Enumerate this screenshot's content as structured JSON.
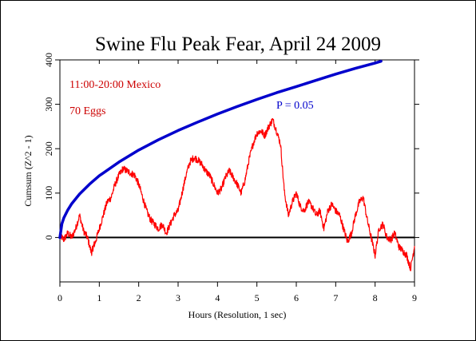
{
  "chart_data": {
    "type": "line",
    "title": "Swine Flu Peak Fear, April 24 2009",
    "xlabel": "Hours (Resolution, 1 sec)",
    "ylabel": "Cumsum (Z^2 - 1)",
    "xlim": [
      0,
      9
    ],
    "ylim": [
      -100,
      400
    ],
    "x_ticks": [
      0,
      1,
      2,
      3,
      4,
      5,
      6,
      7,
      8,
      9
    ],
    "y_ticks": [
      0,
      100,
      200,
      300,
      400
    ],
    "annotations": {
      "time_window": "11:00-20:00 Mexico",
      "eggs": "70 Eggs",
      "p_label": "P = 0.05"
    },
    "series": [
      {
        "role": "cumsum",
        "color": "#ff0000",
        "x": [
          0,
          0.1,
          0.2,
          0.3,
          0.4,
          0.5,
          0.6,
          0.7,
          0.8,
          0.85,
          0.9,
          1.0,
          1.1,
          1.2,
          1.3,
          1.4,
          1.5,
          1.6,
          1.7,
          1.8,
          1.9,
          2.0,
          2.1,
          2.2,
          2.3,
          2.4,
          2.5,
          2.6,
          2.7,
          2.8,
          2.9,
          3.0,
          3.1,
          3.2,
          3.3,
          3.4,
          3.5,
          3.6,
          3.7,
          3.8,
          3.9,
          4.0,
          4.1,
          4.2,
          4.3,
          4.4,
          4.5,
          4.6,
          4.7,
          4.8,
          4.9,
          5.0,
          5.1,
          5.2,
          5.3,
          5.4,
          5.5,
          5.6,
          5.7,
          5.8,
          5.9,
          6.0,
          6.1,
          6.2,
          6.3,
          6.4,
          6.5,
          6.6,
          6.7,
          6.8,
          6.9,
          7.0,
          7.1,
          7.2,
          7.3,
          7.4,
          7.5,
          7.6,
          7.7,
          7.8,
          7.9,
          8.0,
          8.1,
          8.2,
          8.3,
          8.4,
          8.5,
          8.6,
          8.7,
          8.8,
          8.9,
          9.0
        ],
        "values": [
          5,
          -5,
          10,
          0,
          20,
          50,
          15,
          0,
          -35,
          -20,
          -10,
          20,
          50,
          80,
          90,
          120,
          140,
          155,
          150,
          145,
          140,
          120,
          90,
          60,
          40,
          30,
          20,
          30,
          10,
          30,
          50,
          60,
          100,
          140,
          170,
          180,
          175,
          165,
          150,
          140,
          120,
          100,
          110,
          135,
          150,
          135,
          120,
          100,
          130,
          175,
          210,
          235,
          240,
          230,
          250,
          265,
          240,
          210,
          100,
          50,
          80,
          100,
          70,
          60,
          80,
          70,
          50,
          60,
          20,
          60,
          75,
          60,
          50,
          20,
          -10,
          10,
          50,
          80,
          90,
          40,
          0,
          -40,
          20,
          30,
          0,
          -5,
          10,
          -20,
          -30,
          -40,
          -70,
          -20
        ]
      },
      {
        "role": "p_envelope",
        "name": "P = 0.05",
        "color": "#0000cc",
        "x": [
          0,
          0.05,
          0.1,
          0.2,
          0.3,
          0.5,
          0.75,
          1.0,
          1.5,
          2.0,
          2.5,
          3.0,
          3.5,
          4.0,
          4.5,
          5.0,
          5.5,
          6.0,
          6.5,
          7.0,
          7.5,
          8.0,
          8.15
        ],
        "values": [
          0,
          31,
          44,
          62,
          76,
          98,
          120,
          139,
          170,
          197,
          220,
          241,
          260,
          278,
          295,
          311,
          326,
          340,
          354,
          368,
          381,
          393,
          397
        ]
      }
    ]
  }
}
